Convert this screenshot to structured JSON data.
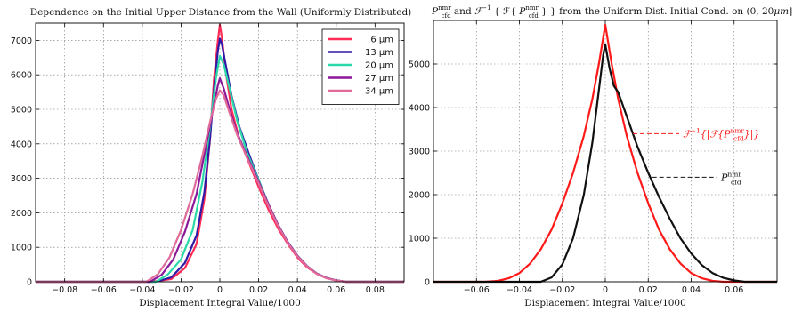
{
  "chart_data": [
    {
      "type": "line",
      "title": "Dependence on the Initial Upper Distance from the Wall (Uniformly Distributed)",
      "xlabel": "Displacement Integral Value/1000",
      "ylabel": "",
      "xlim": [
        -0.095,
        0.095
      ],
      "ylim": [
        0,
        7500
      ],
      "xticks": [
        -0.08,
        -0.06,
        -0.04,
        -0.02,
        0,
        0.02,
        0.04,
        0.06,
        0.08
      ],
      "xtick_labels": [
        "−0.08",
        "−0.06",
        "−0.04",
        "−0.02",
        "0",
        "0.02",
        "0.04",
        "0.06",
        "0.08"
      ],
      "yticks": [
        0,
        1000,
        2000,
        3000,
        4000,
        5000,
        6000,
        7000
      ],
      "ytick_labels": [
        "0",
        "1000",
        "2000",
        "3000",
        "4000",
        "5000",
        "6000",
        "7000"
      ],
      "grid": true,
      "legend": "top-right",
      "series": [
        {
          "name": "6 μm",
          "color": "#ff2a55",
          "x": [
            -0.095,
            -0.035,
            -0.025,
            -0.018,
            -0.012,
            -0.008,
            -0.005,
            -0.003,
            -0.001,
            0,
            0.001,
            0.003,
            0.006,
            0.01,
            0.015,
            0.02,
            0.025,
            0.03,
            0.035,
            0.04,
            0.045,
            0.05,
            0.055,
            0.06,
            0.065,
            0.095
          ],
          "y": [
            0,
            0,
            80,
            400,
            1100,
            2400,
            4200,
            5900,
            7000,
            7450,
            7100,
            6100,
            5000,
            4150,
            3450,
            2750,
            2100,
            1550,
            1100,
            700,
            420,
            230,
            110,
            40,
            0,
            0
          ]
        },
        {
          "name": "13 μm",
          "color": "#2e1aa6",
          "x": [
            -0.095,
            -0.033,
            -0.025,
            -0.018,
            -0.012,
            -0.008,
            -0.005,
            -0.003,
            -0.001,
            0,
            0.001,
            0.003,
            0.006,
            0.01,
            0.015,
            0.02,
            0.025,
            0.03,
            0.035,
            0.04,
            0.045,
            0.05,
            0.055,
            0.06,
            0.065,
            0.095
          ],
          "y": [
            0,
            0,
            130,
            550,
            1350,
            2600,
            4200,
            5600,
            6700,
            7050,
            6900,
            6300,
            5400,
            4500,
            3700,
            2950,
            2250,
            1650,
            1150,
            750,
            450,
            240,
            110,
            40,
            0,
            0
          ]
        },
        {
          "name": "20 μm",
          "color": "#2bd8a8",
          "x": [
            -0.095,
            -0.033,
            -0.027,
            -0.02,
            -0.014,
            -0.009,
            -0.005,
            -0.002,
            0,
            0.002,
            0.005,
            0.009,
            0.014,
            0.02,
            0.025,
            0.03,
            0.035,
            0.04,
            0.045,
            0.05,
            0.055,
            0.06,
            0.065,
            0.095
          ],
          "y": [
            0,
            0,
            200,
            650,
            1500,
            2900,
            4500,
            5900,
            6550,
            6300,
            5600,
            4650,
            3750,
            2950,
            2250,
            1650,
            1150,
            750,
            450,
            240,
            110,
            40,
            0,
            0
          ]
        },
        {
          "name": "27 μm",
          "color": "#8b1a9a",
          "x": [
            -0.095,
            -0.036,
            -0.03,
            -0.024,
            -0.018,
            -0.012,
            -0.008,
            -0.004,
            -0.001,
            0,
            0.002,
            0.005,
            0.009,
            0.014,
            0.02,
            0.025,
            0.03,
            0.035,
            0.04,
            0.045,
            0.05,
            0.055,
            0.06,
            0.065,
            0.095
          ],
          "y": [
            0,
            0,
            200,
            650,
            1450,
            2550,
            3700,
            4850,
            5700,
            5900,
            5600,
            5000,
            4300,
            3650,
            2900,
            2250,
            1650,
            1150,
            750,
            450,
            240,
            110,
            40,
            0,
            0
          ]
        },
        {
          "name": "34 μm",
          "color": "#e06a9a",
          "x": [
            -0.095,
            -0.038,
            -0.032,
            -0.026,
            -0.02,
            -0.014,
            -0.009,
            -0.005,
            -0.002,
            0,
            0.002,
            0.005,
            0.009,
            0.014,
            0.02,
            0.025,
            0.03,
            0.035,
            0.04,
            0.045,
            0.05,
            0.055,
            0.06,
            0.065,
            0.095
          ],
          "y": [
            0,
            0,
            220,
            700,
            1500,
            2550,
            3650,
            4650,
            5300,
            5550,
            5400,
            4900,
            4250,
            3600,
            2850,
            2200,
            1620,
            1130,
            730,
            440,
            230,
            100,
            35,
            0,
            0
          ]
        }
      ]
    },
    {
      "type": "line",
      "title_parts": [
        "P",
        "nmr",
        "cfd",
        " and ",
        "ℱ",
        "−1",
        " { ℱ{ ",
        "P",
        "nmr",
        "cfd",
        " } } from the Uniform Dist. Initial Cond. on (0, 20",
        "μm",
        "]"
      ],
      "xlabel": "Displacement Integral Value/1000",
      "ylabel": "",
      "xlim": [
        -0.08,
        0.08
      ],
      "ylim": [
        0,
        6000
      ],
      "xticks": [
        -0.06,
        -0.04,
        -0.02,
        0,
        0.02,
        0.04,
        0.06
      ],
      "xtick_labels": [
        "−0.06",
        "−0.04",
        "−0.02",
        "0",
        "0.02",
        "0.04",
        "0.06"
      ],
      "yticks": [
        0,
        1000,
        2000,
        3000,
        4000,
        5000
      ],
      "ytick_labels": [
        "0",
        "1000",
        "2000",
        "3000",
        "4000",
        "5000"
      ],
      "grid": true,
      "annotations": [
        {
          "id": "ann-red",
          "parts": [
            "ℱ",
            "−1",
            "{|ℱ{",
            "P",
            "nmr",
            "cfd",
            "}|}"
          ],
          "color": "#ff1a1a",
          "target": [
            0.012,
            3400
          ]
        },
        {
          "id": "ann-black",
          "parts": [
            "P",
            "nmr",
            "cfd"
          ],
          "color": "#111111",
          "target": [
            0.021,
            2400
          ]
        }
      ],
      "series": [
        {
          "name": "",
          "color": "#ff1a1a",
          "x": [
            -0.08,
            -0.056,
            -0.05,
            -0.045,
            -0.04,
            -0.035,
            -0.03,
            -0.025,
            -0.02,
            -0.015,
            -0.01,
            -0.006,
            -0.003,
            -0.001,
            0,
            0.001,
            0.003,
            0.006,
            0.01,
            0.015,
            0.02,
            0.025,
            0.03,
            0.035,
            0.04,
            0.045,
            0.05,
            0.055,
            0.08
          ],
          "y": [
            0,
            0,
            20,
            80,
            200,
            420,
            750,
            1200,
            1800,
            2500,
            3350,
            4200,
            5000,
            5600,
            5900,
            5600,
            5000,
            4200,
            3350,
            2500,
            1800,
            1200,
            750,
            420,
            200,
            80,
            20,
            0,
            0
          ]
        },
        {
          "name": "",
          "color": "#111111",
          "x": [
            -0.08,
            -0.03,
            -0.025,
            -0.02,
            -0.015,
            -0.01,
            -0.006,
            -0.003,
            -0.001,
            0,
            0.002,
            0.004,
            0.006,
            0.01,
            0.015,
            0.02,
            0.025,
            0.03,
            0.035,
            0.04,
            0.045,
            0.05,
            0.055,
            0.06,
            0.065,
            0.08
          ],
          "y": [
            0,
            0,
            100,
            400,
            1000,
            2000,
            3200,
            4400,
            5200,
            5450,
            4900,
            4500,
            4350,
            3800,
            3100,
            2500,
            1950,
            1450,
            1000,
            650,
            380,
            200,
            90,
            30,
            0,
            0
          ]
        }
      ]
    }
  ]
}
